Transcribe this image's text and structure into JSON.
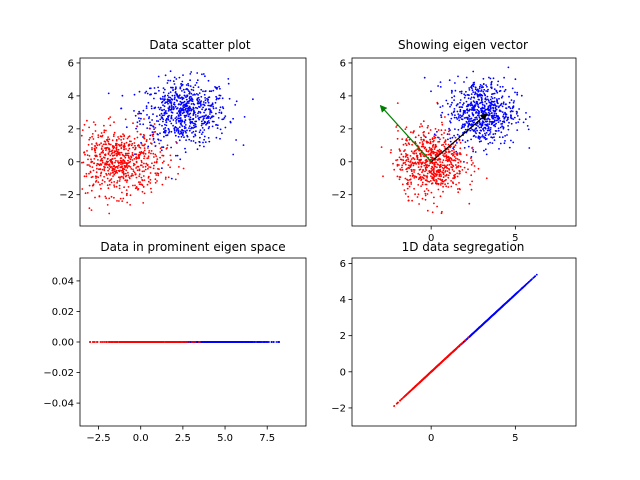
{
  "colors": {
    "class_a": "#0000ff",
    "class_b": "#ff0000",
    "eigen_primary": "#000000",
    "eigen_secondary": "#008000"
  },
  "chart_data": [
    {
      "type": "scatter",
      "title": "Data scatter plot",
      "xlim": [
        -1.8,
        8.6
      ],
      "ylim": [
        -3.9,
        6.3
      ],
      "xticks": [],
      "yticks": [
        -2,
        0,
        2,
        4,
        6
      ],
      "yticklabels": [
        "−2",
        "0",
        "2",
        "4",
        "6"
      ],
      "series": [
        {
          "color": "#0000ff",
          "center": [
            3.0,
            3.0
          ],
          "spread": [
            1.0,
            1.0
          ],
          "points": 700
        },
        {
          "color": "#ff0000",
          "center": [
            0.0,
            0.0
          ],
          "spread": [
            1.0,
            1.0
          ],
          "points": 700
        }
      ]
    },
    {
      "type": "scatter",
      "title": "Showing eigen vector",
      "xlim": [
        -4.7,
        8.6
      ],
      "ylim": [
        -3.9,
        6.3
      ],
      "xticks": [
        0,
        5
      ],
      "xticklabels": [
        "0",
        "5"
      ],
      "yticks": [
        -2,
        0,
        2,
        4,
        6
      ],
      "yticklabels": [
        "−2",
        "0",
        "2",
        "4",
        "6"
      ],
      "series": [
        {
          "color": "#0000ff",
          "center": [
            3.0,
            3.0
          ],
          "spread": [
            1.0,
            1.0
          ],
          "points": 700
        },
        {
          "color": "#ff0000",
          "center": [
            0.0,
            0.0
          ],
          "spread": [
            1.0,
            1.0
          ],
          "points": 700
        }
      ],
      "arrows": [
        {
          "color": "#000000",
          "from": [
            0,
            0
          ],
          "to": [
            3.3,
            2.9
          ]
        },
        {
          "color": "#008000",
          "from": [
            0,
            0
          ],
          "to": [
            -3.0,
            3.4
          ]
        }
      ]
    },
    {
      "type": "scatter",
      "title": "Data in prominent eigen space",
      "xlim": [
        -3.6,
        9.8
      ],
      "ylim": [
        -0.055,
        0.055
      ],
      "xticks": [
        -2.5,
        0.0,
        2.5,
        5.0,
        7.5
      ],
      "xticklabels": [
        "−2.5",
        "0.0",
        "2.5",
        "5.0",
        "7.5"
      ],
      "yticks": [
        -0.04,
        -0.02,
        0.0,
        0.02,
        0.04
      ],
      "yticklabels": [
        "−0.04",
        "−0.02",
        "0.00",
        "0.02",
        "0.04"
      ],
      "series": [
        {
          "color": "#0000ff",
          "x_range": [
            1.5,
            8.2
          ],
          "y": 0.0,
          "points": 700
        },
        {
          "color": "#ff0000",
          "x_range": [
            -3.0,
            3.5
          ],
          "y": 0.0,
          "points": 700
        }
      ]
    },
    {
      "type": "scatter",
      "title": "1D data segregation",
      "xlim": [
        -4.7,
        8.6
      ],
      "ylim": [
        -3.0,
        6.3
      ],
      "xticks": [
        0,
        5
      ],
      "xticklabels": [
        "0",
        "5"
      ],
      "yticks": [
        -2,
        0,
        2,
        4,
        6
      ],
      "yticklabels": [
        "−2",
        "0",
        "2",
        "4",
        "6"
      ],
      "series": [
        {
          "color": "#0000ff",
          "line_from": [
            1.0,
            0.85
          ],
          "line_to": [
            6.3,
            5.4
          ],
          "points": 700
        },
        {
          "color": "#ff0000",
          "line_from": [
            -2.2,
            -1.9
          ],
          "line_to": [
            2.2,
            1.9
          ],
          "points": 700
        }
      ]
    }
  ]
}
